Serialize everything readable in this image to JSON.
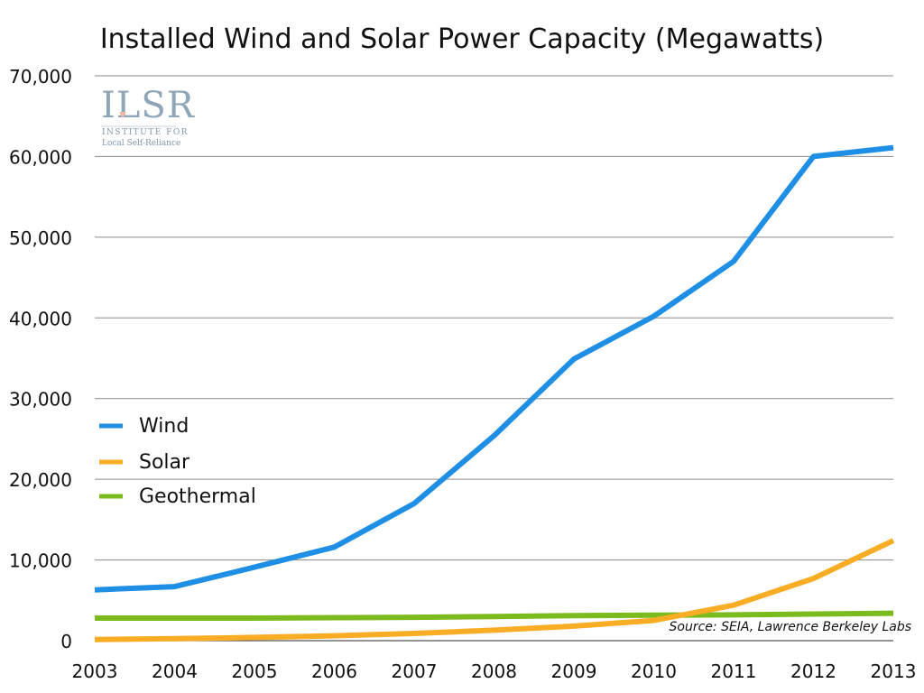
{
  "chart_data": {
    "type": "line",
    "title": "Installed Wind and Solar Power Capacity (Megawatts)",
    "xlabel": "",
    "ylabel": "",
    "x": [
      "2003",
      "2004",
      "2005",
      "2006",
      "2007",
      "2008",
      "2009",
      "2010",
      "2011",
      "2012",
      "2013"
    ],
    "ylim": [
      0,
      70000
    ],
    "yticks": [
      0,
      10000,
      20000,
      30000,
      40000,
      50000,
      60000,
      70000
    ],
    "ytick_labels": [
      "0",
      "10,000",
      "20,000",
      "30,000",
      "40,000",
      "50,000",
      "60,000",
      "70,000"
    ],
    "grid": true,
    "legend_position": "left",
    "series": [
      {
        "name": "Wind",
        "color": "#1f8fe5",
        "values": [
          6300,
          6700,
          9100,
          11600,
          17000,
          25400,
          34900,
          40200,
          47000,
          60000,
          61100
        ]
      },
      {
        "name": "Solar",
        "color": "#f9ad25",
        "values": [
          150,
          250,
          400,
          600,
          900,
          1300,
          1800,
          2500,
          4400,
          7700,
          12400
        ]
      },
      {
        "name": "Geothermal",
        "color": "#7cbb1e",
        "values": [
          2800,
          2800,
          2800,
          2850,
          2900,
          3000,
          3100,
          3150,
          3200,
          3300,
          3400
        ]
      }
    ],
    "annotation": "Source: SEIA, Lawrence Berkeley Labs"
  },
  "logo": {
    "text": "ILSR",
    "sub1": "INSTITUTE FOR",
    "sub2": "Local Self-Reliance"
  }
}
